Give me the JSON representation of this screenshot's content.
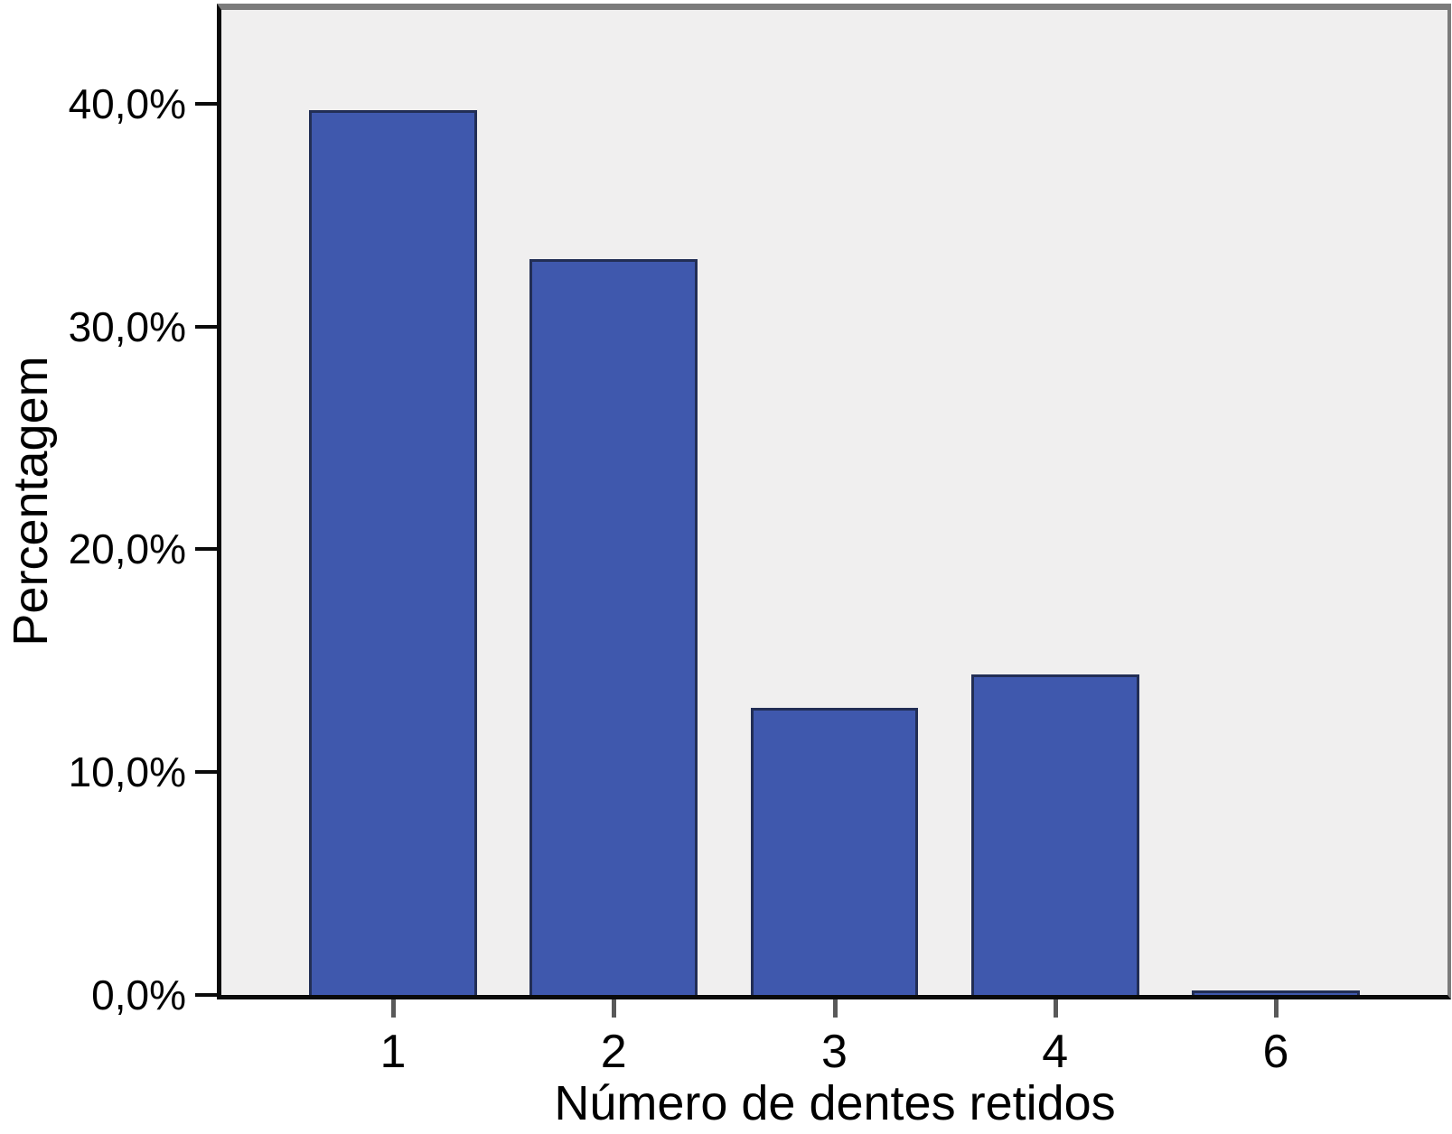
{
  "chart_data": {
    "type": "bar",
    "title": "",
    "xlabel": "Número de dentes retidos",
    "ylabel": "Percentagem",
    "categories": [
      "1",
      "2",
      "3",
      "4",
      "6"
    ],
    "values": [
      39.7,
      33.0,
      12.9,
      14.4,
      0.2
    ],
    "y_ticks": [
      {
        "value": 0,
        "label": "0,0%"
      },
      {
        "value": 10,
        "label": "10,0%"
      },
      {
        "value": 20,
        "label": "20,0%"
      },
      {
        "value": 30,
        "label": "30,0%"
      },
      {
        "value": 40,
        "label": "40,0%"
      }
    ],
    "ylim": [
      0,
      44.2
    ],
    "grid": false,
    "legend_position": "none",
    "colors": {
      "bar_fill": "#3f58ad",
      "bar_border": "#222e55",
      "plot_background": "#f0efef",
      "frame_gray": "#7b7b7b",
      "axis_black": "#0a0a0a",
      "x_tick_gray": "#595959"
    }
  }
}
